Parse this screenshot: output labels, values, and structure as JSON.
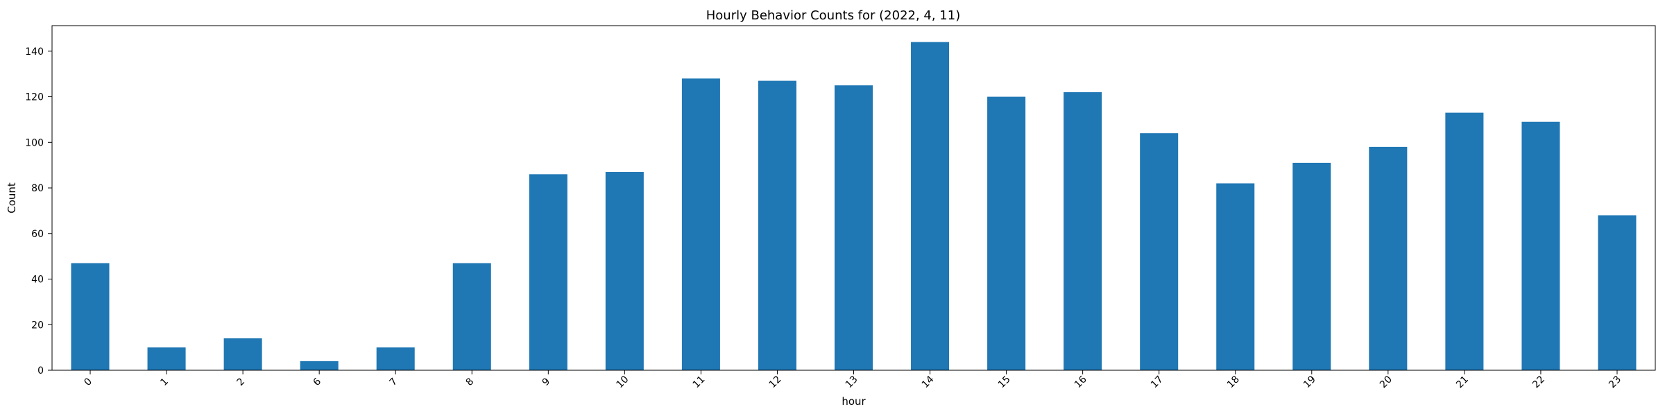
{
  "chart_data": {
    "type": "bar",
    "title": "Hourly Behavior Counts for (2022, 4, 11)",
    "xlabel": "hour",
    "ylabel": "Count",
    "categories": [
      "0",
      "1",
      "2",
      "6",
      "7",
      "8",
      "9",
      "10",
      "11",
      "12",
      "13",
      "14",
      "15",
      "16",
      "17",
      "18",
      "19",
      "20",
      "21",
      "22",
      "23"
    ],
    "values": [
      47,
      10,
      14,
      4,
      10,
      47,
      86,
      87,
      128,
      127,
      125,
      144,
      120,
      122,
      104,
      82,
      91,
      98,
      113,
      109,
      68
    ],
    "ylim": [
      0,
      151.2
    ],
    "yticks": [
      0,
      20,
      40,
      60,
      80,
      100,
      120,
      140
    ],
    "grid": false,
    "legend": false,
    "colors": {
      "bar": "#1f77b4",
      "axis": "#000000"
    }
  }
}
